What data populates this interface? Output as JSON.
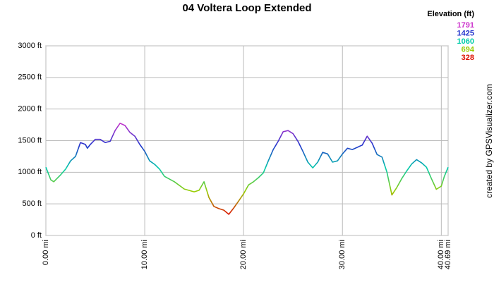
{
  "chart_data": {
    "type": "line",
    "title": "04 Voltera Loop Extended",
    "legend_title": "Elevation (ft)",
    "color_scale": [
      {
        "value": 1791,
        "color": "#cc33cc"
      },
      {
        "value": 1425,
        "color": "#2233cc"
      },
      {
        "value": 1060,
        "color": "#00ccaa"
      },
      {
        "value": 694,
        "color": "#99cc00"
      },
      {
        "value": 328,
        "color": "#dd1100"
      }
    ],
    "credit": "created by GPSVisualizer.com",
    "x": [
      0,
      0.5,
      0.8,
      1.5,
      2,
      2.5,
      3,
      3.5,
      4,
      4.2,
      4.5,
      5,
      5.5,
      6,
      6.5,
      7,
      7.5,
      8,
      8.5,
      9,
      9.5,
      10,
      10.5,
      11,
      11.5,
      12,
      13,
      14,
      15,
      15.5,
      16,
      16.5,
      17,
      17.5,
      18,
      18.5,
      19,
      19.5,
      20,
      20.5,
      21,
      21.5,
      22,
      22.5,
      23,
      23.5,
      24,
      24.5,
      25,
      25.5,
      26,
      26.5,
      27,
      27.5,
      28,
      28.5,
      29,
      29.5,
      30,
      30.5,
      31,
      32,
      32.5,
      33,
      33.5,
      34,
      34.5,
      35,
      35.5,
      36,
      36.5,
      37,
      37.5,
      38,
      38.5,
      39,
      39.5,
      40,
      40.3,
      40.69
    ],
    "series": [
      {
        "values": [
          1080,
          880,
          850,
          960,
          1050,
          1180,
          1250,
          1470,
          1440,
          1380,
          1440,
          1520,
          1520,
          1470,
          1490,
          1660,
          1775,
          1740,
          1630,
          1570,
          1440,
          1330,
          1180,
          1125,
          1050,
          935,
          850,
          735,
          690,
          715,
          850,
          600,
          460,
          425,
          400,
          335,
          435,
          545,
          660,
          800,
          850,
          915,
          990,
          1180,
          1360,
          1490,
          1640,
          1660,
          1610,
          1490,
          1330,
          1160,
          1070,
          1160,
          1315,
          1290,
          1160,
          1180,
          1290,
          1380,
          1360,
          1430,
          1570,
          1460,
          1280,
          1240,
          1000,
          640,
          760,
          900,
          1020,
          1130,
          1200,
          1150,
          1080,
          900,
          730,
          780,
          930,
          1080
        ]
      }
    ],
    "xlim": [
      0,
      40.69
    ],
    "xticks": [
      {
        "value": 0,
        "label": "0.00 mi"
      },
      {
        "value": 10,
        "label": "10.00 mi"
      },
      {
        "value": 20,
        "label": "20.00 mi"
      },
      {
        "value": 30,
        "label": "30.00 mi"
      },
      {
        "value": 40,
        "label": "40.00 mi"
      },
      {
        "value": 40.69,
        "label": "40.69 mi"
      }
    ],
    "ylim": [
      0,
      3000
    ],
    "yticks": [
      {
        "value": 0,
        "label": "0 ft"
      },
      {
        "value": 500,
        "label": "500 ft"
      },
      {
        "value": 1000,
        "label": "1000 ft"
      },
      {
        "value": 1500,
        "label": "1500 ft"
      },
      {
        "value": 2000,
        "label": "2000 ft"
      },
      {
        "value": 2500,
        "label": "2500 ft"
      },
      {
        "value": 3000,
        "label": "3000 ft"
      }
    ],
    "grid": true
  }
}
